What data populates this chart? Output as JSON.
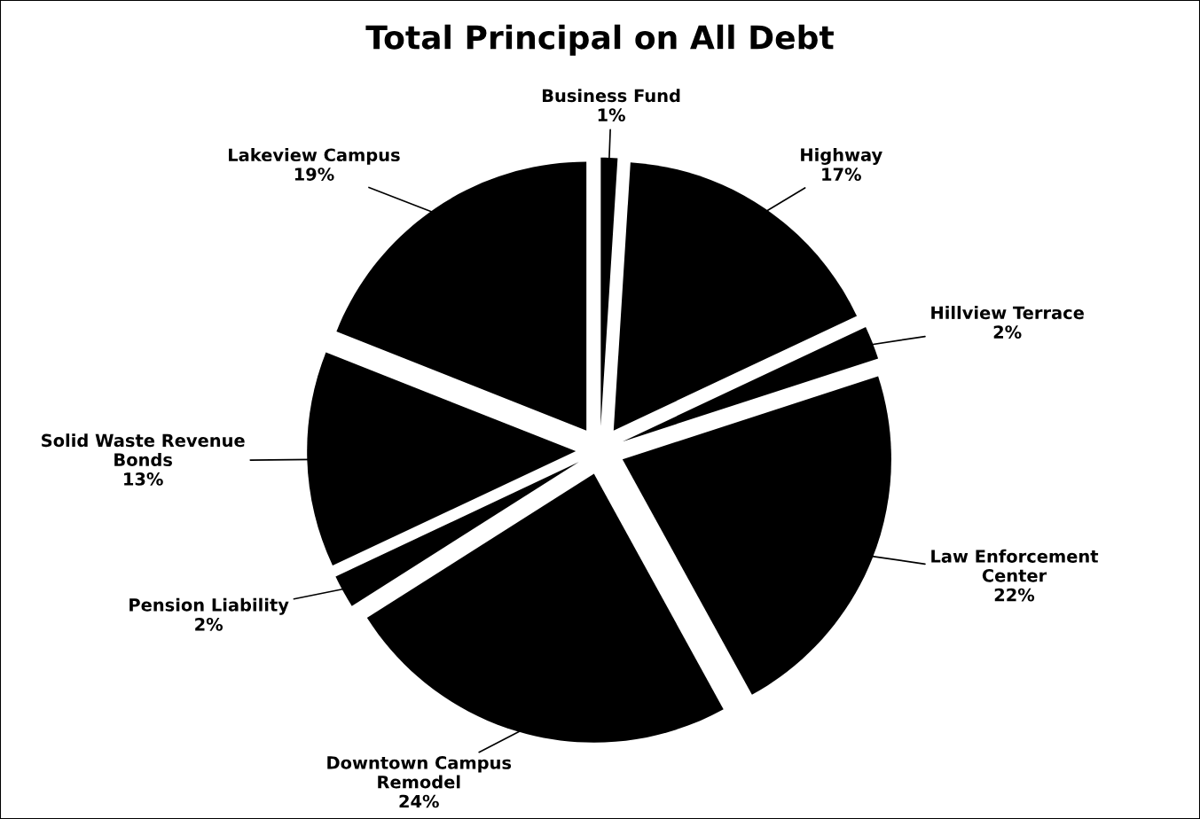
{
  "chart_data": {
    "type": "pie",
    "title": "Total Principal on All Debt",
    "categories": [
      "Business Fund",
      "Highway",
      "Hillview Terrace",
      "Law Enforcement\nCenter",
      "Downtown Campus\nRemodel",
      "Pension Liability",
      "Solid Waste Revenue\nBonds",
      "Lakeview Campus"
    ],
    "values": [
      1,
      17,
      2,
      22,
      24,
      2,
      13,
      19
    ],
    "value_labels": [
      "1%",
      "17%",
      "2%",
      "22%",
      "24%",
      "2%",
      "13%",
      "19%"
    ],
    "colors": [
      "#000000",
      "#000000",
      "#000000",
      "#000000",
      "#000000",
      "#000000",
      "#000000",
      "#000000"
    ]
  }
}
